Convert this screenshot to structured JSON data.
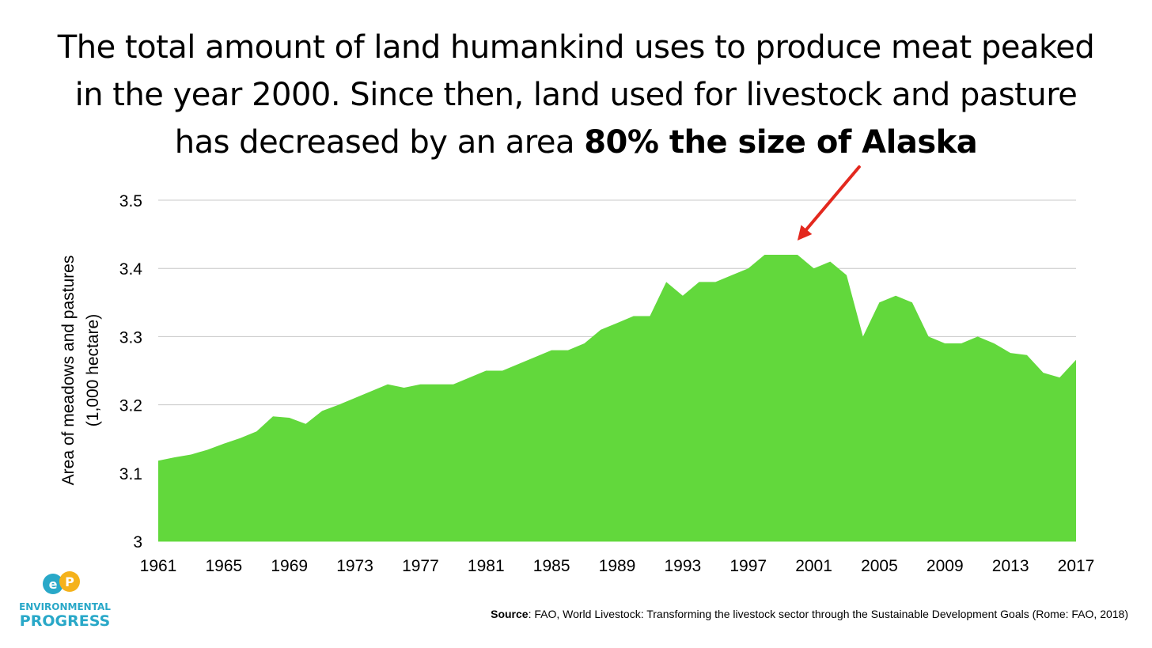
{
  "title": {
    "line1": "The total amount of land humankind uses to produce meat peaked",
    "line2": "in the year 2000. Since then, land used for livestock and pasture",
    "line3_normal": "has decreased by an area ",
    "line3_bold": "80% the size of Alaska"
  },
  "logo": {
    "monogram": "EP",
    "line1": "ENVIRONMENTAL",
    "line2": "PROGRESS",
    "colors": {
      "left": "#29a8c8",
      "right": "#f5b21b"
    }
  },
  "source": {
    "label": "Source",
    "text": ": FAO, World Livestock: Transforming the livestock sector through the Sustainable Development Goals (Rome: FAO, 2018)"
  },
  "chart_data": {
    "type": "area",
    "ylabel_line1": "Area of meadows and pastures",
    "ylabel_line2": "(1,000 hectare)",
    "xlabel": "",
    "ylim": [
      3,
      3.5
    ],
    "yticks": [
      "3",
      "3.1",
      "3.2",
      "3.3",
      "3.4",
      "3.5"
    ],
    "xticks": [
      "1961",
      "1965",
      "1969",
      "1973",
      "1977",
      "1981",
      "1985",
      "1989",
      "1993",
      "1997",
      "2001",
      "2005",
      "2009",
      "2013",
      "2017"
    ],
    "grid": true,
    "fill_color": "#62d83c",
    "arrow_color": "#e3281e",
    "annotation_target_year": 2000,
    "x": [
      1961,
      1962,
      1963,
      1964,
      1965,
      1966,
      1967,
      1968,
      1969,
      1970,
      1971,
      1972,
      1973,
      1974,
      1975,
      1976,
      1977,
      1978,
      1979,
      1980,
      1981,
      1982,
      1983,
      1984,
      1985,
      1986,
      1987,
      1988,
      1989,
      1990,
      1991,
      1992,
      1993,
      1994,
      1995,
      1996,
      1997,
      1998,
      1999,
      2000,
      2001,
      2002,
      2003,
      2004,
      2005,
      2006,
      2007,
      2008,
      2009,
      2010,
      2011,
      2012,
      2013,
      2014,
      2015,
      2016,
      2017
    ],
    "values": [
      3.118,
      3.123,
      3.127,
      3.134,
      3.143,
      3.151,
      3.161,
      3.183,
      3.181,
      3.172,
      3.191,
      3.2,
      3.21,
      3.22,
      3.23,
      3.225,
      3.23,
      3.23,
      3.23,
      3.24,
      3.25,
      3.25,
      3.26,
      3.27,
      3.28,
      3.28,
      3.29,
      3.31,
      3.32,
      3.33,
      3.33,
      3.38,
      3.36,
      3.38,
      3.38,
      3.39,
      3.4,
      3.42,
      3.42,
      3.42,
      3.4,
      3.41,
      3.39,
      3.3,
      3.35,
      3.36,
      3.35,
      3.3,
      3.29,
      3.29,
      3.3,
      3.29,
      3.276,
      3.273,
      3.247,
      3.24,
      3.266
    ]
  }
}
